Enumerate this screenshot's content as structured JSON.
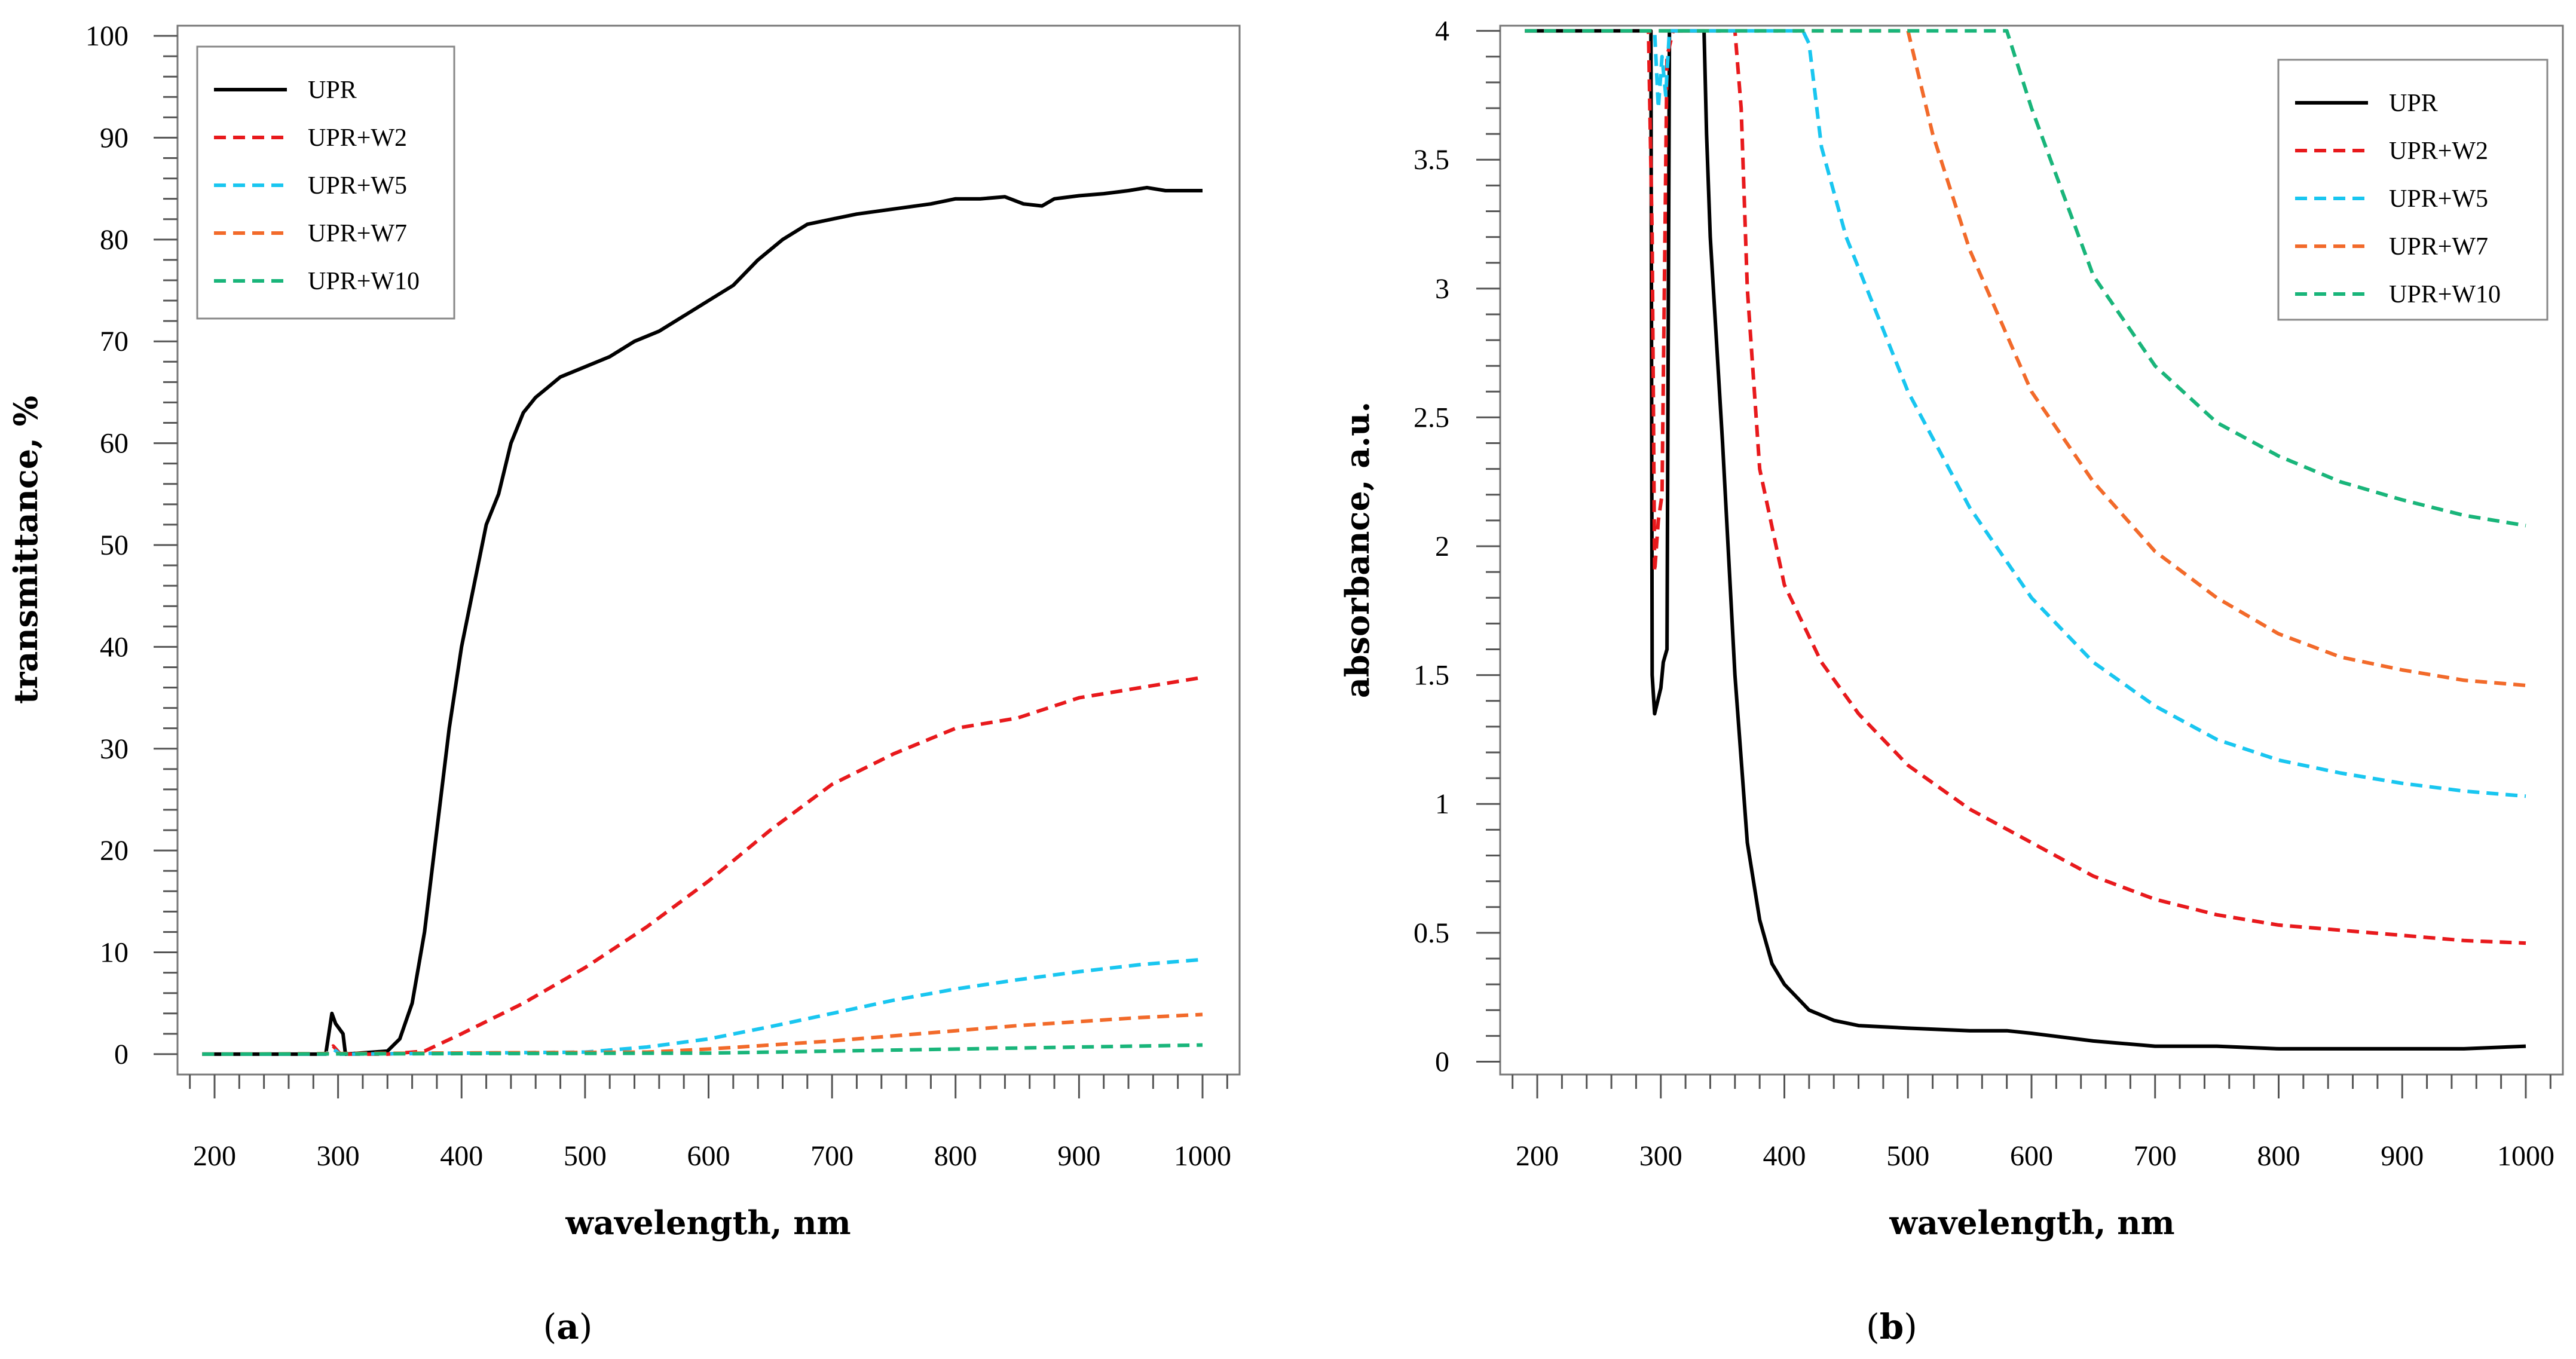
{
  "chart_data": [
    {
      "type": "line",
      "panel": "(a)",
      "panel_letter": "a",
      "xlabel": "wavelength, nm",
      "ylabel": "transmittance, %",
      "xlim": [
        170,
        1030
      ],
      "ylim": [
        -2,
        101
      ],
      "xticks": [
        200,
        300,
        400,
        500,
        600,
        700,
        800,
        900,
        1000
      ],
      "yticks": [
        0,
        10,
        20,
        30,
        40,
        50,
        60,
        70,
        80,
        90,
        100
      ],
      "x_minor_step": 20,
      "y_minor_step": 2,
      "legend_position": "top-left",
      "series": [
        {
          "name": "UPR",
          "color": "#000000",
          "dash": "solid",
          "x": [
            190,
            290,
            295,
            298,
            304,
            306,
            340,
            350,
            360,
            370,
            380,
            390,
            400,
            410,
            420,
            430,
            440,
            450,
            460,
            470,
            480,
            490,
            500,
            520,
            540,
            560,
            580,
            600,
            620,
            640,
            660,
            680,
            700,
            720,
            750,
            780,
            800,
            820,
            840,
            855,
            870,
            880,
            900,
            920,
            940,
            955,
            970,
            985,
            1000
          ],
          "y": [
            0,
            0,
            4,
            3,
            2,
            0,
            0.3,
            1.5,
            5,
            12,
            22,
            32,
            40,
            46,
            52,
            55,
            60,
            63,
            64.5,
            65.5,
            66.5,
            67,
            67.5,
            68.5,
            70,
            71,
            72.5,
            74,
            75.5,
            78,
            80,
            81.5,
            82,
            82.5,
            83,
            83.5,
            84,
            84,
            84.2,
            83.5,
            83.3,
            84,
            84.3,
            84.5,
            84.8,
            85.1,
            84.8,
            84.8,
            84.8
          ]
        },
        {
          "name": "UPR+W2",
          "color": "#e8191c",
          "dash": "dash",
          "x": [
            190,
            290,
            296,
            302,
            340,
            370,
            400,
            450,
            500,
            550,
            600,
            650,
            700,
            750,
            800,
            850,
            900,
            950,
            1000
          ],
          "y": [
            0,
            0,
            0.8,
            0,
            0,
            0.3,
            2,
            5,
            8.5,
            12.5,
            17,
            22,
            26.5,
            29.5,
            32,
            33,
            35,
            36,
            37
          ]
        },
        {
          "name": "UPR+W5",
          "color": "#19c6f0",
          "dash": "dash",
          "x": [
            190,
            290,
            296,
            302,
            500,
            550,
            600,
            650,
            700,
            750,
            800,
            850,
            900,
            950,
            1000
          ],
          "y": [
            0,
            0,
            0.5,
            0,
            0.2,
            0.7,
            1.5,
            2.7,
            4,
            5.3,
            6.4,
            7.3,
            8.1,
            8.8,
            9.3
          ]
        },
        {
          "name": "UPR+W7",
          "color": "#f26a2a",
          "dash": "dash",
          "x": [
            190,
            550,
            600,
            650,
            700,
            750,
            800,
            850,
            900,
            950,
            1000
          ],
          "y": [
            0,
            0.2,
            0.5,
            0.9,
            1.3,
            1.8,
            2.3,
            2.8,
            3.2,
            3.6,
            3.9
          ]
        },
        {
          "name": "UPR+W10",
          "color": "#19b57a",
          "dash": "dash",
          "x": [
            190,
            600,
            700,
            800,
            900,
            1000
          ],
          "y": [
            0,
            0.1,
            0.3,
            0.5,
            0.7,
            0.9
          ]
        }
      ]
    },
    {
      "type": "line",
      "panel": "(b)",
      "panel_letter": "b",
      "xlabel": "wavelength, nm",
      "ylabel": "absorbance, a.u.",
      "xlim": [
        170,
        1030
      ],
      "ylim": [
        -0.05,
        4.02
      ],
      "xticks": [
        200,
        300,
        400,
        500,
        600,
        700,
        800,
        900,
        1000
      ],
      "yticks": [
        0,
        0.5,
        1,
        1.5,
        2,
        2.5,
        3,
        3.5,
        4
      ],
      "x_minor_step": 20,
      "y_minor_step": 0.1,
      "legend_position": "top-right",
      "series": [
        {
          "name": "UPR",
          "color": "#000000",
          "dash": "solid",
          "x": [
            190,
            290,
            292,
            293,
            295,
            300,
            302,
            305,
            307,
            310,
            330,
            335,
            337,
            340,
            350,
            360,
            370,
            380,
            390,
            400,
            410,
            420,
            440,
            460,
            500,
            550,
            580,
            600,
            650,
            700,
            750,
            800,
            850,
            900,
            950,
            1000
          ],
          "y": [
            4,
            4,
            4,
            1.5,
            1.35,
            1.45,
            1.55,
            1.6,
            4,
            4,
            4,
            4,
            3.6,
            3.2,
            2.4,
            1.5,
            0.85,
            0.55,
            0.38,
            0.3,
            0.25,
            0.2,
            0.16,
            0.14,
            0.13,
            0.12,
            0.12,
            0.11,
            0.08,
            0.06,
            0.06,
            0.05,
            0.05,
            0.05,
            0.05,
            0.06
          ]
        },
        {
          "name": "UPR+W2",
          "color": "#e8191c",
          "dash": "dash",
          "x": [
            190,
            290,
            293,
            295,
            298,
            301,
            305,
            310,
            360,
            365,
            370,
            380,
            400,
            430,
            460,
            500,
            550,
            600,
            650,
            700,
            750,
            800,
            850,
            900,
            950,
            1000
          ],
          "y": [
            4,
            4,
            3.2,
            1.9,
            2.1,
            2.2,
            3.9,
            4,
            4,
            3.7,
            3.0,
            2.3,
            1.85,
            1.55,
            1.35,
            1.15,
            0.98,
            0.85,
            0.72,
            0.63,
            0.57,
            0.53,
            0.51,
            0.49,
            0.47,
            0.46
          ]
        },
        {
          "name": "UPR+W5",
          "color": "#19c6f0",
          "dash": "dash",
          "x": [
            190,
            295,
            298,
            301,
            304,
            307,
            415,
            420,
            430,
            450,
            500,
            550,
            600,
            650,
            700,
            750,
            800,
            850,
            900,
            950,
            1000
          ],
          "y": [
            4,
            4,
            3.7,
            3.9,
            3.75,
            4,
            4,
            3.95,
            3.55,
            3.2,
            2.6,
            2.15,
            1.8,
            1.55,
            1.38,
            1.25,
            1.17,
            1.12,
            1.08,
            1.05,
            1.03
          ]
        },
        {
          "name": "UPR+W7",
          "color": "#f26a2a",
          "dash": "dash",
          "x": [
            190,
            500,
            510,
            520,
            550,
            600,
            650,
            700,
            750,
            800,
            850,
            900,
            950,
            1000
          ],
          "y": [
            4,
            4,
            3.8,
            3.6,
            3.15,
            2.6,
            2.25,
            1.98,
            1.8,
            1.66,
            1.57,
            1.52,
            1.48,
            1.46
          ]
        },
        {
          "name": "UPR+W10",
          "color": "#19b57a",
          "dash": "dash",
          "x": [
            190,
            580,
            590,
            600,
            650,
            700,
            750,
            800,
            850,
            900,
            950,
            1000
          ],
          "y": [
            4,
            4,
            3.85,
            3.7,
            3.05,
            2.7,
            2.48,
            2.35,
            2.25,
            2.18,
            2.12,
            2.08
          ]
        }
      ]
    }
  ]
}
